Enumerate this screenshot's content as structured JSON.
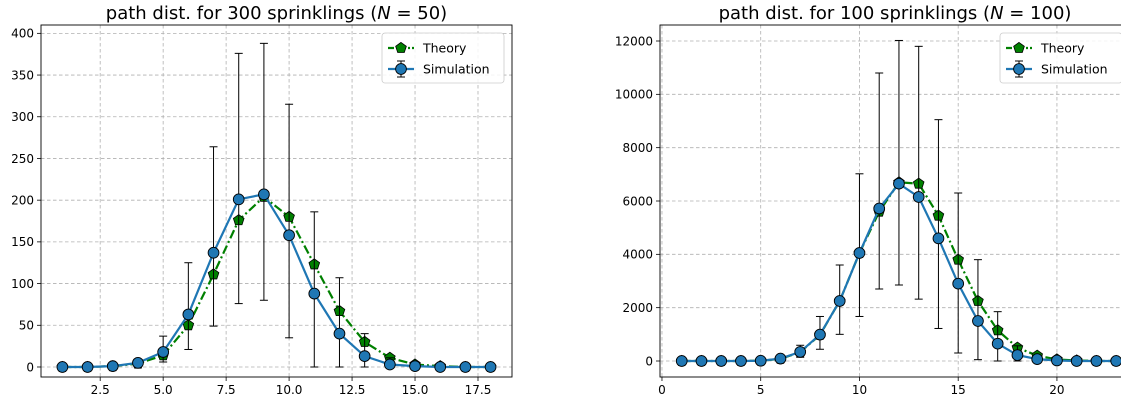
{
  "chart_data": [
    {
      "type": "line",
      "title": "path dist.  for 300 sprinklings (N = 50)",
      "title_parts": {
        "prefix": "path dist.  for 300 sprinklings (",
        "var": "N",
        "suffix": " = 50)"
      },
      "xlabel": "",
      "ylabel": "",
      "xlim": [
        0.15,
        18.85
      ],
      "ylim": [
        -12,
        410
      ],
      "xticks": [
        2.5,
        5.0,
        7.5,
        10.0,
        12.5,
        15.0,
        17.5
      ],
      "xtick_labels": [
        "2.5",
        "5.0",
        "7.5",
        "10.0",
        "12.5",
        "15.0",
        "17.5"
      ],
      "yticks": [
        0,
        50,
        100,
        150,
        200,
        250,
        300,
        350,
        400
      ],
      "ytick_labels": [
        "0",
        "50",
        "100",
        "150",
        "200",
        "250",
        "300",
        "350",
        "400"
      ],
      "grid": true,
      "legend_position": "top-right",
      "series": [
        {
          "name": "Theory",
          "color": "#008000",
          "marker": "pentagon",
          "line_style": "dash-dot",
          "x": [
            1,
            2,
            3,
            4,
            5,
            6,
            7,
            8,
            9,
            10,
            11,
            12,
            13,
            14,
            15,
            16,
            17,
            18
          ],
          "y": [
            0,
            0,
            1,
            4,
            14,
            50,
            111,
            176,
            204,
            180,
            123,
            67,
            30,
            11,
            3,
            1,
            0,
            0
          ]
        },
        {
          "name": "Simulation",
          "color": "#1f77b4",
          "marker": "circle",
          "line_style": "solid",
          "x": [
            1,
            2,
            3,
            4,
            5,
            6,
            7,
            8,
            9,
            10,
            11,
            12,
            13,
            14,
            15,
            16,
            17,
            18
          ],
          "y": [
            0,
            0,
            1,
            5,
            18,
            63,
            137,
            201,
            207,
            158,
            88,
            40,
            13,
            3,
            1,
            0,
            0,
            0
          ],
          "err_low": [
            0,
            0,
            1,
            3,
            12,
            42,
            88,
            125,
            127,
            123,
            88,
            40,
            13,
            3,
            1,
            0,
            0,
            0
          ],
          "err_high": [
            0,
            0,
            1,
            2,
            19,
            62,
            127,
            175,
            181,
            157,
            98,
            67,
            27,
            8,
            2,
            0,
            0,
            0
          ]
        }
      ]
    },
    {
      "type": "line",
      "title": "path dist.  for 100 sprinklings (N = 100)",
      "title_parts": {
        "prefix": "path dist.  for 100 sprinklings (",
        "var": "N",
        "suffix": " = 100)"
      },
      "xlabel": "",
      "ylabel": "",
      "xlim": [
        -0.1,
        23.7
      ],
      "ylim": [
        -600,
        12600
      ],
      "xticks": [
        0,
        5,
        10,
        15,
        20
      ],
      "xtick_labels": [
        "0",
        "5",
        "10",
        "15",
        "20"
      ],
      "yticks": [
        0,
        2000,
        4000,
        6000,
        8000,
        10000,
        12000
      ],
      "ytick_labels": [
        "0",
        "2000",
        "4000",
        "6000",
        "8000",
        "10000",
        "12000"
      ],
      "grid": true,
      "legend_position": "top-right",
      "series": [
        {
          "name": "Theory",
          "color": "#008000",
          "marker": "pentagon",
          "line_style": "dash-dot",
          "x": [
            1,
            2,
            3,
            4,
            5,
            6,
            7,
            8,
            9,
            10,
            11,
            12,
            13,
            14,
            15,
            16,
            17,
            18,
            19,
            20,
            21,
            22,
            23
          ],
          "y": [
            0,
            0,
            0,
            0,
            10,
            80,
            330,
            980,
            2250,
            4050,
            5600,
            6700,
            6650,
            5450,
            3800,
            2250,
            1150,
            500,
            200,
            60,
            20,
            0,
            0
          ]
        },
        {
          "name": "Simulation",
          "color": "#1f77b4",
          "marker": "circle",
          "line_style": "solid",
          "x": [
            1,
            2,
            3,
            4,
            5,
            6,
            7,
            8,
            9,
            10,
            11,
            12,
            13,
            14,
            15,
            16,
            17,
            18,
            19,
            20,
            21,
            22,
            23
          ],
          "y": [
            0,
            0,
            0,
            0,
            10,
            90,
            340,
            990,
            2250,
            4050,
            5720,
            6650,
            6150,
            4600,
            2900,
            1500,
            650,
            220,
            70,
            20,
            0,
            0,
            0
          ],
          "err_low": [
            0,
            0,
            0,
            0,
            10,
            90,
            200,
            550,
            1250,
            2380,
            3020,
            3800,
            3830,
            3380,
            2600,
            1450,
            650,
            220,
            70,
            20,
            0,
            0,
            0
          ],
          "err_high": [
            0,
            0,
            0,
            0,
            10,
            100,
            250,
            680,
            1350,
            2970,
            5080,
            5370,
            5650,
            4450,
            3400,
            2300,
            1200,
            350,
            100,
            30,
            0,
            0,
            0
          ]
        }
      ]
    }
  ]
}
